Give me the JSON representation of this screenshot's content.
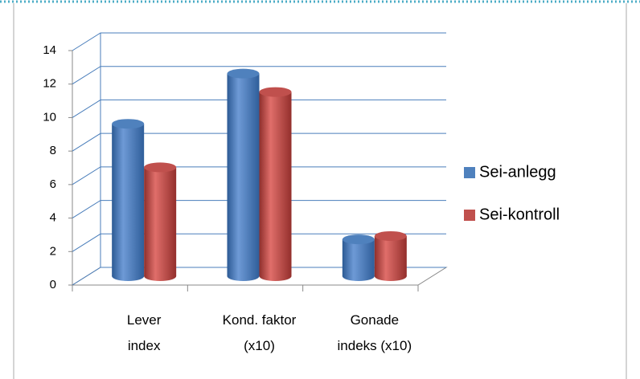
{
  "chart_data": {
    "type": "bar3d",
    "categories": [
      "Lever\nindex",
      "Kond. faktor\n(x10)",
      "Gonade\nindeks (x10)"
    ],
    "series": [
      {
        "name": "Sei-anlegg",
        "color": "#4f81bd",
        "values": [
          9.1,
          12.1,
          2.2
        ]
      },
      {
        "name": "Sei-kontroll",
        "color": "#c0504d",
        "values": [
          6.5,
          11.0,
          2.4
        ]
      }
    ],
    "ylim": [
      0,
      14
    ],
    "yticks": [
      0,
      2,
      4,
      6,
      8,
      10,
      12,
      14
    ],
    "grid": true,
    "legend": "right"
  }
}
